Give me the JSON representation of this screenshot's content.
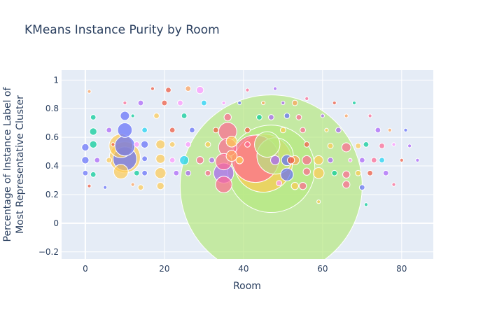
{
  "chart_data": {
    "type": "scatter",
    "title": "KMeans Instance Purity by Room",
    "xlabel": "Room",
    "ylabel_lines": [
      "Percentage of Instance Label of",
      "Most Representative Cluster"
    ],
    "xlim": [
      -6,
      88
    ],
    "ylim": [
      -0.25,
      1.07
    ],
    "x_ticks": [
      0,
      20,
      40,
      60,
      80
    ],
    "y_ticks": [
      -0.2,
      0,
      0.2,
      0.4,
      0.6,
      0.8,
      1
    ],
    "y_tick_labels": [
      "−0.2",
      "0",
      "0.2",
      "0.4",
      "0.6",
      "0.8",
      "1"
    ],
    "grid": true,
    "bubble_size_encodes": "relative marker size (unlabeled)",
    "points": [
      {
        "x": 47,
        "y": 0.26,
        "size": 100,
        "color": "#b6e880"
      },
      {
        "x": 47,
        "y": 0.38,
        "size": 48,
        "color": "#b6e880"
      },
      {
        "x": 45,
        "y": 0.42,
        "size": 32,
        "color": "#fecb52"
      },
      {
        "x": 43,
        "y": 0.45,
        "size": 26,
        "color": "#ff6692"
      },
      {
        "x": 48,
        "y": 0.47,
        "size": 20,
        "color": "#b6e880"
      },
      {
        "x": 46,
        "y": 0.55,
        "size": 14,
        "color": "#b6e880"
      },
      {
        "x": 10,
        "y": 0.46,
        "size": 17,
        "color": "#fecb52"
      },
      {
        "x": 10,
        "y": 0.45,
        "size": 13,
        "color": "#636efa"
      },
      {
        "x": 10,
        "y": 0.54,
        "size": 11,
        "color": "#636efa"
      },
      {
        "x": 9,
        "y": 0.54,
        "size": 13,
        "color": "#fecb52"
      },
      {
        "x": 10,
        "y": 0.65,
        "size": 8,
        "color": "#636efa"
      },
      {
        "x": 9,
        "y": 0.36,
        "size": 8,
        "color": "#fecb52"
      },
      {
        "x": 10,
        "y": 0.75,
        "size": 5,
        "color": "#636efa"
      },
      {
        "x": 36,
        "y": 0.64,
        "size": 10,
        "color": "#ff6692"
      },
      {
        "x": 36,
        "y": 0.53,
        "size": 10,
        "color": "#ff6692"
      },
      {
        "x": 35,
        "y": 0.43,
        "size": 9,
        "color": "#ff6692"
      },
      {
        "x": 35,
        "y": 0.35,
        "size": 11,
        "color": "#ab63fa"
      },
      {
        "x": 35,
        "y": 0.27,
        "size": 9,
        "color": "#ff6692"
      },
      {
        "x": 37,
        "y": 0.57,
        "size": 6,
        "color": "#fecb52"
      },
      {
        "x": 37,
        "y": 0.47,
        "size": 6,
        "color": "#ffa15a"
      },
      {
        "x": 36,
        "y": 0.74,
        "size": 4,
        "color": "#ff6692"
      },
      {
        "x": 51,
        "y": 0.34,
        "size": 7,
        "color": "#636efa"
      },
      {
        "x": 51,
        "y": 0.44,
        "size": 6,
        "color": "#636efa"
      },
      {
        "x": 48,
        "y": 0.44,
        "size": 5,
        "color": "#ab63fa"
      },
      {
        "x": 53,
        "y": 0.44,
        "size": 5,
        "color": "#ffa15a"
      },
      {
        "x": 52,
        "y": 0.44,
        "size": 4,
        "color": "#ef553b"
      },
      {
        "x": 59,
        "y": 0.35,
        "size": 6,
        "color": "#fecb52"
      },
      {
        "x": 59,
        "y": 0.44,
        "size": 5,
        "color": "#fecb52"
      },
      {
        "x": 56,
        "y": 0.44,
        "size": 5,
        "color": "#ff6692"
      },
      {
        "x": 56,
        "y": 0.36,
        "size": 4,
        "color": "#ff6692"
      },
      {
        "x": 55,
        "y": 0.26,
        "size": 4,
        "color": "#ff6692"
      },
      {
        "x": 53,
        "y": 0.26,
        "size": 4,
        "color": "#fecb52"
      },
      {
        "x": 19,
        "y": 0.55,
        "size": 5,
        "color": "#fecb52"
      },
      {
        "x": 19,
        "y": 0.45,
        "size": 5,
        "color": "#fecb52"
      },
      {
        "x": 19,
        "y": 0.35,
        "size": 6,
        "color": "#fecb52"
      },
      {
        "x": 19,
        "y": 0.26,
        "size": 4,
        "color": "#fecb52"
      },
      {
        "x": 25,
        "y": 0.44,
        "size": 5,
        "color": "#19d3f3"
      },
      {
        "x": 29,
        "y": 0.93,
        "size": 4,
        "color": "#ff97ff"
      },
      {
        "x": 29,
        "y": 0.44,
        "size": 4,
        "color": "#ff6692"
      },
      {
        "x": 66,
        "y": 0.53,
        "size": 5,
        "color": "#ff6692"
      },
      {
        "x": 66,
        "y": 0.34,
        "size": 4,
        "color": "#ff6692"
      },
      {
        "x": 66,
        "y": 0.27,
        "size": 4,
        "color": "#ff6692"
      },
      {
        "x": 0,
        "y": 0.53,
        "size": 4,
        "color": "#636efa"
      },
      {
        "x": 0,
        "y": 0.44,
        "size": 4,
        "color": "#636efa"
      },
      {
        "x": 0,
        "y": 0.35,
        "size": 3,
        "color": "#636efa"
      },
      {
        "x": 2,
        "y": 0.64,
        "size": 4,
        "color": "#00cc96"
      },
      {
        "x": 2,
        "y": 0.55,
        "size": 4,
        "color": "#00cc96"
      },
      {
        "x": 2,
        "y": 0.74,
        "size": 3,
        "color": "#00cc96"
      },
      {
        "x": 2,
        "y": 0.34,
        "size": 3,
        "color": "#00cc96"
      },
      {
        "x": 3,
        "y": 0.44,
        "size": 3,
        "color": "#ab63fa"
      },
      {
        "x": 41,
        "y": 0.65,
        "size": 3,
        "color": "#ef553b"
      },
      {
        "x": 41,
        "y": 0.55,
        "size": 3,
        "color": "#ff6692"
      },
      {
        "x": 39,
        "y": 0.44,
        "size": 4,
        "color": "#fecb52"
      },
      {
        "x": 49,
        "y": 0.28,
        "size": 3,
        "color": "#ff97ff"
      },
      {
        "x": 50,
        "y": 0.65,
        "size": 3,
        "color": "#fecb52"
      },
      {
        "x": 15,
        "y": 0.55,
        "size": 4,
        "color": "#636efa"
      },
      {
        "x": 15,
        "y": 0.35,
        "size": 3,
        "color": "#636efa"
      },
      {
        "x": 15,
        "y": 0.45,
        "size": 3,
        "color": "#636efa"
      },
      {
        "x": 15,
        "y": 0.65,
        "size": 3,
        "color": "#19d3f3"
      },
      {
        "x": 13,
        "y": 0.55,
        "size": 3,
        "color": "#ff97ff"
      },
      {
        "x": 13,
        "y": 0.35,
        "size": 3,
        "color": "#00cc96"
      },
      {
        "x": 14,
        "y": 0.25,
        "size": 3,
        "color": "#fecb52"
      },
      {
        "x": 22,
        "y": 0.44,
        "size": 3,
        "color": "#ff97ff"
      },
      {
        "x": 22,
        "y": 0.55,
        "size": 3,
        "color": "#fecb52"
      },
      {
        "x": 22,
        "y": 0.65,
        "size": 3,
        "color": "#ef553b"
      },
      {
        "x": 23,
        "y": 0.35,
        "size": 3,
        "color": "#ab63fa"
      },
      {
        "x": 26,
        "y": 0.35,
        "size": 3,
        "color": "#ab63fa"
      },
      {
        "x": 26,
        "y": 0.55,
        "size": 3,
        "color": "#ff97ff"
      },
      {
        "x": 27,
        "y": 0.65,
        "size": 3,
        "color": "#636efa"
      },
      {
        "x": 31,
        "y": 0.55,
        "size": 3,
        "color": "#fecb52"
      },
      {
        "x": 31,
        "y": 0.35,
        "size": 3,
        "color": "#ff6692"
      },
      {
        "x": 32,
        "y": 0.44,
        "size": 3,
        "color": "#ab63fa"
      },
      {
        "x": 33,
        "y": 0.65,
        "size": 3,
        "color": "#ef553b"
      },
      {
        "x": 20,
        "y": 0.84,
        "size": 3,
        "color": "#ef553b"
      },
      {
        "x": 21,
        "y": 0.93,
        "size": 3,
        "color": "#ef553b"
      },
      {
        "x": 26,
        "y": 0.94,
        "size": 3,
        "color": "#ffa15a"
      },
      {
        "x": 30,
        "y": 0.84,
        "size": 3,
        "color": "#19d3f3"
      },
      {
        "x": 24,
        "y": 0.84,
        "size": 3,
        "color": "#ff97ff"
      },
      {
        "x": 25,
        "y": 0.75,
        "size": 3,
        "color": "#00cc96"
      },
      {
        "x": 18,
        "y": 0.75,
        "size": 3,
        "color": "#fecb52"
      },
      {
        "x": 14,
        "y": 0.84,
        "size": 3,
        "color": "#ab63fa"
      },
      {
        "x": 10,
        "y": 0.84,
        "size": 2,
        "color": "#ff6692"
      },
      {
        "x": 44,
        "y": 0.74,
        "size": 3,
        "color": "#00cc96"
      },
      {
        "x": 47,
        "y": 0.74,
        "size": 3,
        "color": "#ab63fa"
      },
      {
        "x": 51,
        "y": 0.75,
        "size": 3,
        "color": "#636efa"
      },
      {
        "x": 54,
        "y": 0.74,
        "size": 3,
        "color": "#ff6692"
      },
      {
        "x": 55,
        "y": 0.65,
        "size": 3,
        "color": "#ff6692"
      },
      {
        "x": 56,
        "y": 0.55,
        "size": 3,
        "color": "#ef553b"
      },
      {
        "x": 53,
        "y": 0.84,
        "size": 3,
        "color": "#ffa15a"
      },
      {
        "x": 56,
        "y": 0.87,
        "size": 2,
        "color": "#ff6692"
      },
      {
        "x": 48,
        "y": 0.94,
        "size": 2,
        "color": "#ab63fa"
      },
      {
        "x": 41,
        "y": 0.93,
        "size": 2,
        "color": "#ff6692"
      },
      {
        "x": 62,
        "y": 0.54,
        "size": 3,
        "color": "#fecb52"
      },
      {
        "x": 62,
        "y": 0.44,
        "size": 3,
        "color": "#ab63fa"
      },
      {
        "x": 63,
        "y": 0.35,
        "size": 3,
        "color": "#00cc96"
      },
      {
        "x": 64,
        "y": 0.65,
        "size": 3,
        "color": "#ab63fa"
      },
      {
        "x": 69,
        "y": 0.54,
        "size": 3,
        "color": "#fecb52"
      },
      {
        "x": 69,
        "y": 0.35,
        "size": 3,
        "color": "#fecb52"
      },
      {
        "x": 70,
        "y": 0.44,
        "size": 3,
        "color": "#ab63fa"
      },
      {
        "x": 70,
        "y": 0.25,
        "size": 3,
        "color": "#636efa"
      },
      {
        "x": 71,
        "y": 0.55,
        "size": 3,
        "color": "#00cc96"
      },
      {
        "x": 72,
        "y": 0.35,
        "size": 3,
        "color": "#ef553b"
      },
      {
        "x": 73,
        "y": 0.44,
        "size": 3,
        "color": "#ff6692"
      },
      {
        "x": 74,
        "y": 0.65,
        "size": 3,
        "color": "#ab63fa"
      },
      {
        "x": 75,
        "y": 0.54,
        "size": 3,
        "color": "#ff6692"
      },
      {
        "x": 75,
        "y": 0.44,
        "size": 3,
        "color": "#19d3f3"
      },
      {
        "x": 76,
        "y": 0.35,
        "size": 3,
        "color": "#ab63fa"
      },
      {
        "x": 77,
        "y": 0.65,
        "size": 2,
        "color": "#ffa15a"
      },
      {
        "x": 78,
        "y": 0.55,
        "size": 2,
        "color": "#ff97ff"
      },
      {
        "x": 80,
        "y": 0.44,
        "size": 2,
        "color": "#ef553b"
      },
      {
        "x": 81,
        "y": 0.65,
        "size": 2,
        "color": "#636efa"
      },
      {
        "x": 82,
        "y": 0.54,
        "size": 2,
        "color": "#ab63fa"
      },
      {
        "x": 68,
        "y": 0.84,
        "size": 2,
        "color": "#00cc96"
      },
      {
        "x": 72,
        "y": 0.75,
        "size": 2,
        "color": "#ff6692"
      },
      {
        "x": 60,
        "y": 0.75,
        "size": 2,
        "color": "#ab63fa"
      },
      {
        "x": 71,
        "y": 0.13,
        "size": 2,
        "color": "#00cc96"
      },
      {
        "x": 59,
        "y": 0.15,
        "size": 2,
        "color": "#fecb52"
      },
      {
        "x": 6,
        "y": 0.65,
        "size": 3,
        "color": "#ab63fa"
      },
      {
        "x": 6,
        "y": 0.44,
        "size": 3,
        "color": "#fecb52"
      },
      {
        "x": 7,
        "y": 0.55,
        "size": 2,
        "color": "#ef553b"
      },
      {
        "x": 5,
        "y": 0.25,
        "size": 2,
        "color": "#636efa"
      },
      {
        "x": 1,
        "y": 0.26,
        "size": 2,
        "color": "#ef553b"
      },
      {
        "x": 1,
        "y": 0.92,
        "size": 2,
        "color": "#ffa15a"
      },
      {
        "x": 12,
        "y": 0.75,
        "size": 2,
        "color": "#00cc96"
      },
      {
        "x": 12,
        "y": 0.27,
        "size": 2,
        "color": "#ffa15a"
      },
      {
        "x": 17,
        "y": 0.94,
        "size": 2,
        "color": "#ef553b"
      },
      {
        "x": 35,
        "y": 0.84,
        "size": 2,
        "color": "#ff97ff"
      },
      {
        "x": 39,
        "y": 0.84,
        "size": 2,
        "color": "#636efa"
      },
      {
        "x": 45,
        "y": 0.84,
        "size": 2,
        "color": "#ffa15a"
      },
      {
        "x": 50,
        "y": 0.84,
        "size": 2,
        "color": "#ab63fa"
      },
      {
        "x": 61,
        "y": 0.65,
        "size": 2,
        "color": "#fecb52"
      },
      {
        "x": 63,
        "y": 0.84,
        "size": 2,
        "color": "#ef553b"
      },
      {
        "x": 66,
        "y": 0.75,
        "size": 2,
        "color": "#ffa15a"
      },
      {
        "x": 67,
        "y": 0.44,
        "size": 2,
        "color": "#ff97ff"
      },
      {
        "x": 78,
        "y": 0.27,
        "size": 2,
        "color": "#ff6692"
      },
      {
        "x": 84,
        "y": 0.44,
        "size": 2,
        "color": "#ab63fa"
      }
    ]
  }
}
